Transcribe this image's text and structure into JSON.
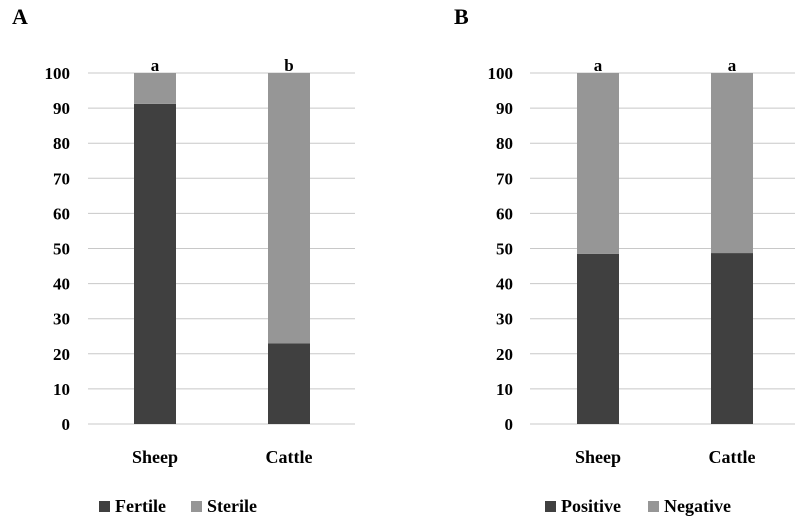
{
  "chart_data": [
    {
      "type": "bar",
      "stacked": true,
      "panel_label": "A",
      "categories": [
        "Sheep",
        "Cattle"
      ],
      "series": [
        {
          "name": "Fertile",
          "values": [
            91.2,
            23.0
          ],
          "color": "#404040"
        },
        {
          "name": "Sterile",
          "values": [
            8.8,
            77.0
          ],
          "color": "#969696"
        }
      ],
      "significance": [
        "a",
        "b"
      ],
      "ylim": [
        0,
        100
      ],
      "yticks": [
        0,
        10,
        20,
        30,
        40,
        50,
        60,
        70,
        80,
        90,
        100
      ],
      "grid": true,
      "legend_position": "bottom"
    },
    {
      "type": "bar",
      "stacked": true,
      "panel_label": "B",
      "categories": [
        "Sheep",
        "Cattle"
      ],
      "series": [
        {
          "name": "Positive",
          "values": [
            48.5,
            48.7
          ],
          "color": "#404040"
        },
        {
          "name": "Negative",
          "values": [
            51.5,
            51.3
          ],
          "color": "#969696"
        }
      ],
      "significance": [
        "a",
        "a"
      ],
      "ylim": [
        0,
        100
      ],
      "yticks": [
        0,
        10,
        20,
        30,
        40,
        50,
        60,
        70,
        80,
        90,
        100
      ],
      "grid": true,
      "legend_position": "bottom"
    }
  ]
}
